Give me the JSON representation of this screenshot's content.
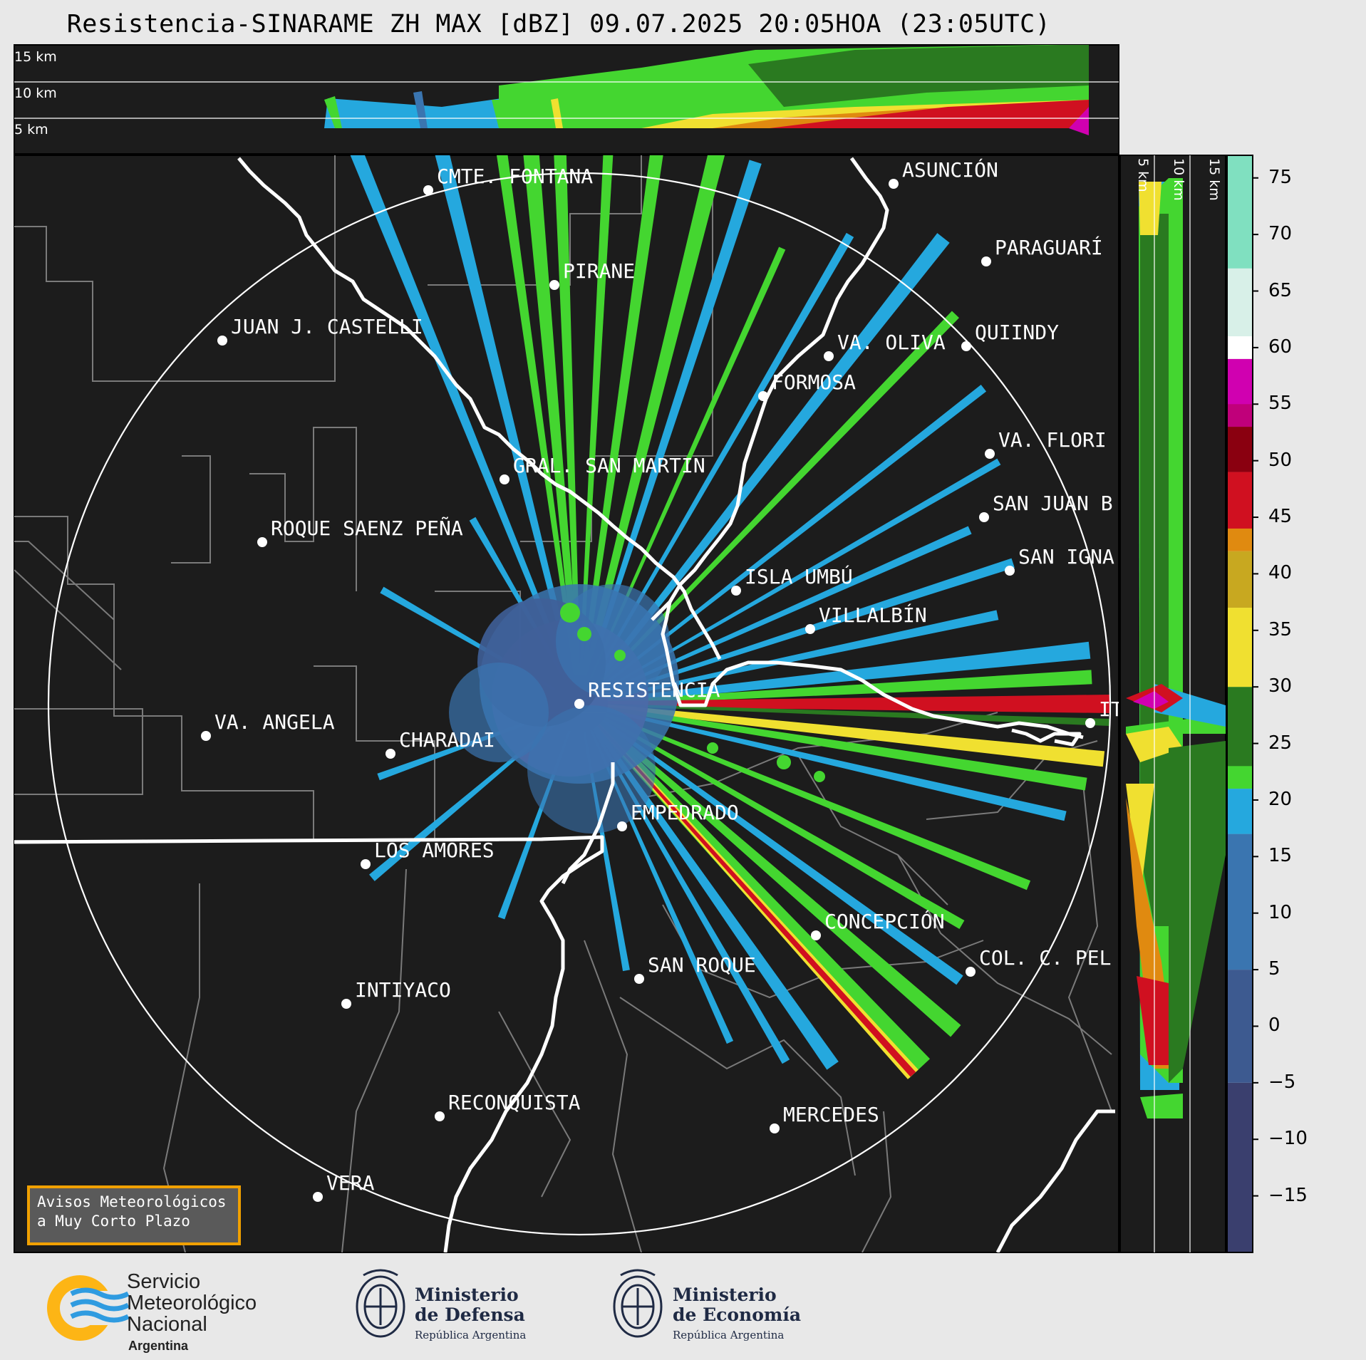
{
  "title": "Resistencia-SINARAME ZH MAX [dBZ] 09.07.2025 20:05HOA (23:05UTC)",
  "top_panel": {
    "altitude_labels": [
      "15 km",
      "10 km",
      "5 km"
    ]
  },
  "side_panel": {
    "altitude_labels": [
      "5 km",
      "10 km",
      "15 km"
    ]
  },
  "cities": [
    {
      "name": "CMTE. FONTANA"
    },
    {
      "name": "ASUNCIÓN"
    },
    {
      "name": "PIRANE"
    },
    {
      "name": "PARAGUARÍ"
    },
    {
      "name": "JUAN J. CASTELLI"
    },
    {
      "name": "VA. OLIVA"
    },
    {
      "name": "QUIINDY"
    },
    {
      "name": "FORMOSA"
    },
    {
      "name": "VA. FLORI"
    },
    {
      "name": "GRAL. SAN MARTIN"
    },
    {
      "name": "SAN JUAN B"
    },
    {
      "name": "ROQUE SAENZ PEÑA"
    },
    {
      "name": "SAN IGNA"
    },
    {
      "name": "ISLA UMBÚ"
    },
    {
      "name": "VILLALBÍN"
    },
    {
      "name": "RESISTENCIA"
    },
    {
      "name": "VA. ANGELA"
    },
    {
      "name": "CHARADAI"
    },
    {
      "name": "IT"
    },
    {
      "name": "EMPEDRADO"
    },
    {
      "name": "LOS AMORES"
    },
    {
      "name": "CONCEPCIÓN"
    },
    {
      "name": "SAN ROQUE"
    },
    {
      "name": "COL. C. PEL"
    },
    {
      "name": "INTIYACO"
    },
    {
      "name": "RECONQUISTA"
    },
    {
      "name": "MERCEDES"
    },
    {
      "name": "VERA"
    }
  ],
  "colorbar": {
    "unit": "dBZ",
    "ticks": [
      "75",
      "70",
      "65",
      "60",
      "55",
      "50",
      "45",
      "40",
      "35",
      "30",
      "25",
      "20",
      "15",
      "10",
      "5",
      "0",
      "−5",
      "−10",
      "−15"
    ],
    "range": [
      -20,
      77
    ],
    "colors": {
      "low": "#3a3f6e",
      "blue_mid": "#3a75b0",
      "cyan": "#25a8de",
      "green": "#44d630",
      "green_dark": "#2a7a20",
      "yellow": "#f0e030",
      "orange": "#e08a10",
      "red": "#d01020",
      "dark_red": "#8a0010",
      "magenta": "#d000b0",
      "white": "#ffffff",
      "teal": "#80e0c0"
    }
  },
  "avisos": {
    "line1": "Avisos Meteorológicos",
    "line2": "a Muy Corto Plazo"
  },
  "footer": {
    "smn": {
      "line1": "Servicio",
      "line2": "Meteorológico",
      "line3": "Nacional",
      "line4": "Argentina"
    },
    "defensa": {
      "line1": "Ministerio",
      "line2": "de Defensa",
      "line3": "República Argentina"
    },
    "economia": {
      "line1": "Ministerio",
      "line2": "de Economía",
      "line3": "República Argentina"
    }
  }
}
